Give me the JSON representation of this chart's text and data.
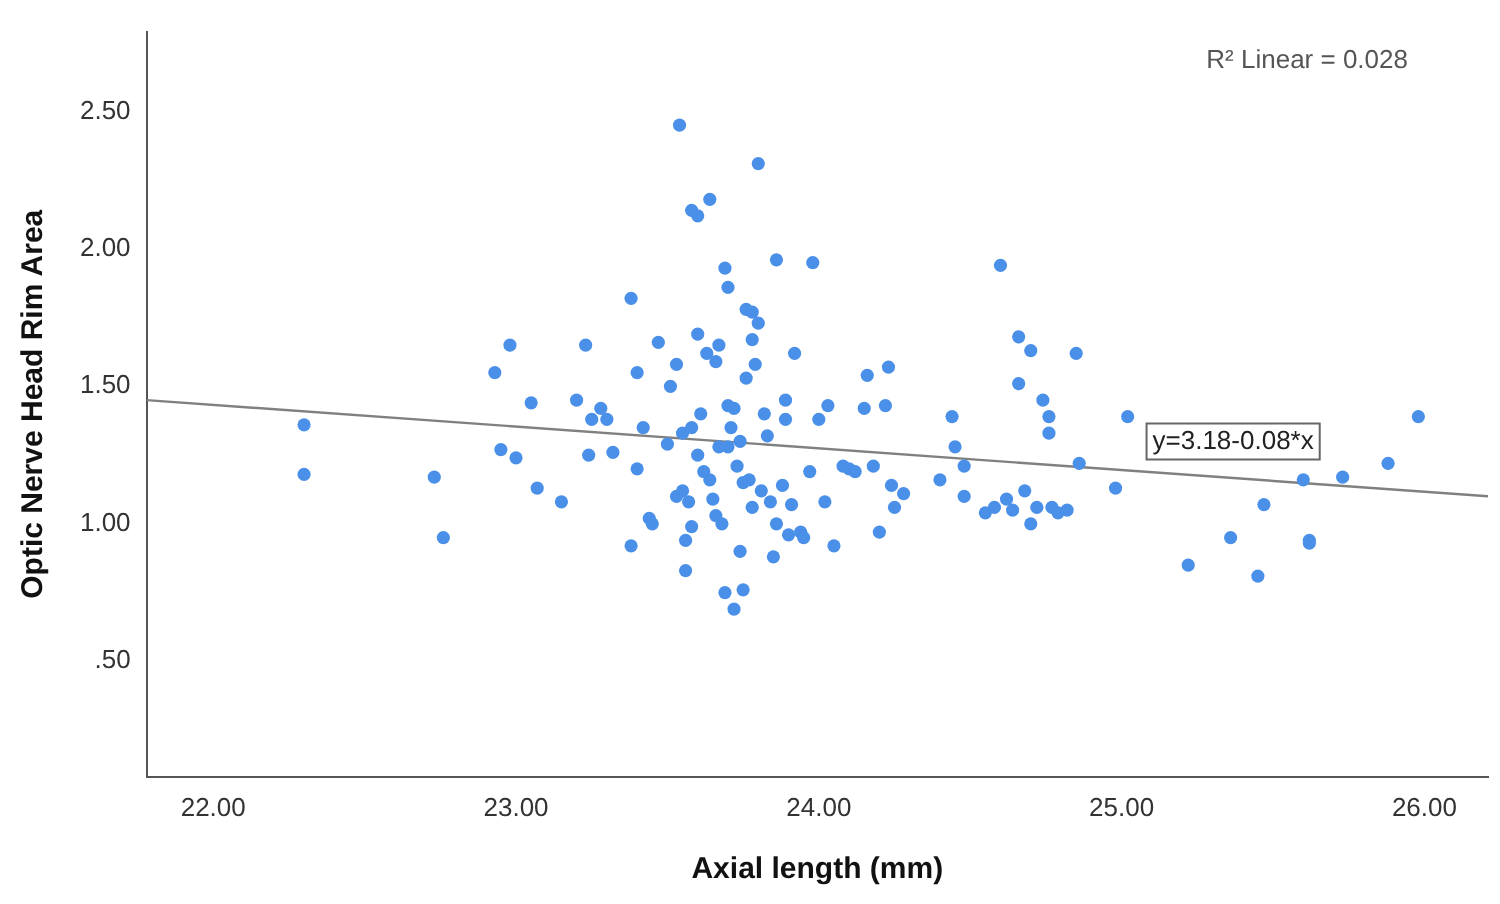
{
  "chart_data": {
    "type": "scatter",
    "xlabel": "Axial length (mm)",
    "ylabel": "Optic Nerve Head Rim Area",
    "xlim": [
      21.78,
      26.21
    ],
    "ylim": [
      0.08,
      2.79
    ],
    "xticks": [
      {
        "value": 22,
        "label": "22.00"
      },
      {
        "value": 23,
        "label": "23.00"
      },
      {
        "value": 24,
        "label": "24.00"
      },
      {
        "value": 25,
        "label": "25.00"
      },
      {
        "value": 26,
        "label": "26.00"
      }
    ],
    "yticks": [
      {
        "value": 0.5,
        "label": ".50"
      },
      {
        "value": 1,
        "label": "1.00"
      },
      {
        "value": 1.5,
        "label": "1.50"
      },
      {
        "value": 2,
        "label": "2.00"
      },
      {
        "value": 2.5,
        "label": "2.50"
      }
    ],
    "grid": false,
    "legend": false,
    "marker": "circle",
    "annotations": [
      "R² Linear = 0.028",
      "y=3.18-0.08*x"
    ],
    "series": [
      {
        "color": "#4a8fe8",
        "x": [
          22.3,
          22.3,
          22.73,
          22.76,
          22.93,
          22.95,
          22.98,
          23.0,
          23.05,
          23.07,
          23.15,
          23.2,
          23.23,
          23.24,
          23.25,
          23.28,
          23.3,
          23.32,
          23.38,
          23.38,
          23.4,
          23.4,
          23.42,
          23.44,
          23.45,
          23.47,
          23.5,
          23.51,
          23.53,
          23.53,
          23.54,
          23.55,
          23.55,
          23.56,
          23.56,
          23.57,
          23.58,
          23.58,
          23.58,
          23.6,
          23.6,
          23.6,
          23.61,
          23.62,
          23.63,
          23.64,
          23.64,
          23.65,
          23.66,
          23.66,
          23.67,
          23.67,
          23.68,
          23.69,
          23.69,
          23.7,
          23.7,
          23.7,
          23.71,
          23.72,
          23.72,
          23.73,
          23.74,
          23.74,
          23.75,
          23.75,
          23.76,
          23.76,
          23.77,
          23.78,
          23.78,
          23.78,
          23.79,
          23.8,
          23.8,
          23.81,
          23.82,
          23.83,
          23.84,
          23.85,
          23.86,
          23.86,
          23.88,
          23.89,
          23.89,
          23.9,
          23.91,
          23.92,
          23.94,
          23.95,
          23.97,
          23.98,
          24.0,
          24.02,
          24.03,
          24.05,
          24.08,
          24.1,
          24.12,
          24.15,
          24.16,
          24.18,
          24.2,
          24.22,
          24.23,
          24.24,
          24.25,
          24.28,
          24.4,
          24.44,
          24.45,
          24.48,
          24.48,
          24.55,
          24.58,
          24.6,
          24.62,
          24.64,
          24.66,
          24.66,
          24.68,
          24.7,
          24.7,
          24.72,
          24.74,
          24.76,
          24.76,
          24.77,
          24.79,
          24.82,
          24.85,
          24.86,
          24.98,
          25.02,
          25.22,
          25.36,
          25.45,
          25.47,
          25.6,
          25.62,
          25.62,
          25.73,
          25.88,
          25.98
        ],
        "values": [
          1.36,
          1.18,
          1.17,
          0.95,
          1.55,
          1.27,
          1.65,
          1.24,
          1.44,
          1.13,
          1.08,
          1.45,
          1.65,
          1.25,
          1.38,
          1.42,
          1.38,
          1.26,
          1.82,
          0.92,
          1.55,
          1.2,
          1.35,
          1.02,
          1.0,
          1.66,
          1.29,
          1.5,
          1.58,
          1.1,
          2.45,
          1.33,
          1.12,
          0.94,
          0.83,
          1.08,
          2.14,
          1.35,
          0.99,
          2.12,
          1.69,
          1.25,
          1.4,
          1.19,
          1.62,
          2.18,
          1.16,
          1.09,
          1.03,
          1.59,
          1.28,
          1.65,
          1.0,
          1.93,
          0.75,
          1.86,
          1.43,
          1.28,
          1.35,
          1.42,
          0.69,
          1.21,
          1.3,
          0.9,
          1.15,
          0.76,
          1.53,
          1.78,
          1.16,
          1.77,
          1.67,
          1.06,
          1.58,
          2.31,
          1.73,
          1.12,
          1.4,
          1.32,
          1.08,
          0.88,
          1.96,
          1.0,
          1.14,
          1.45,
          1.38,
          0.96,
          1.07,
          1.62,
          0.97,
          0.95,
          1.19,
          1.95,
          1.38,
          1.08,
          1.43,
          0.92,
          1.21,
          1.2,
          1.19,
          1.42,
          1.54,
          1.21,
          0.97,
          1.43,
          1.57,
          1.14,
          1.06,
          1.11,
          1.16,
          1.39,
          1.28,
          1.21,
          1.1,
          1.04,
          1.06,
          1.94,
          1.09,
          1.05,
          1.51,
          1.68,
          1.12,
          1.63,
          1.0,
          1.06,
          1.45,
          1.33,
          1.39,
          1.06,
          1.04,
          1.05,
          1.62,
          1.22,
          1.13,
          1.39,
          0.85,
          0.95,
          0.81,
          1.07,
          1.16,
          0.94,
          0.93,
          1.17,
          1.22,
          1.39
        ]
      },
      {
        "type": "line",
        "color": "#808080",
        "marker": "none",
        "x": [
          21.78,
          26.21
        ],
        "values": [
          1.45,
          1.1
        ]
      }
    ]
  }
}
